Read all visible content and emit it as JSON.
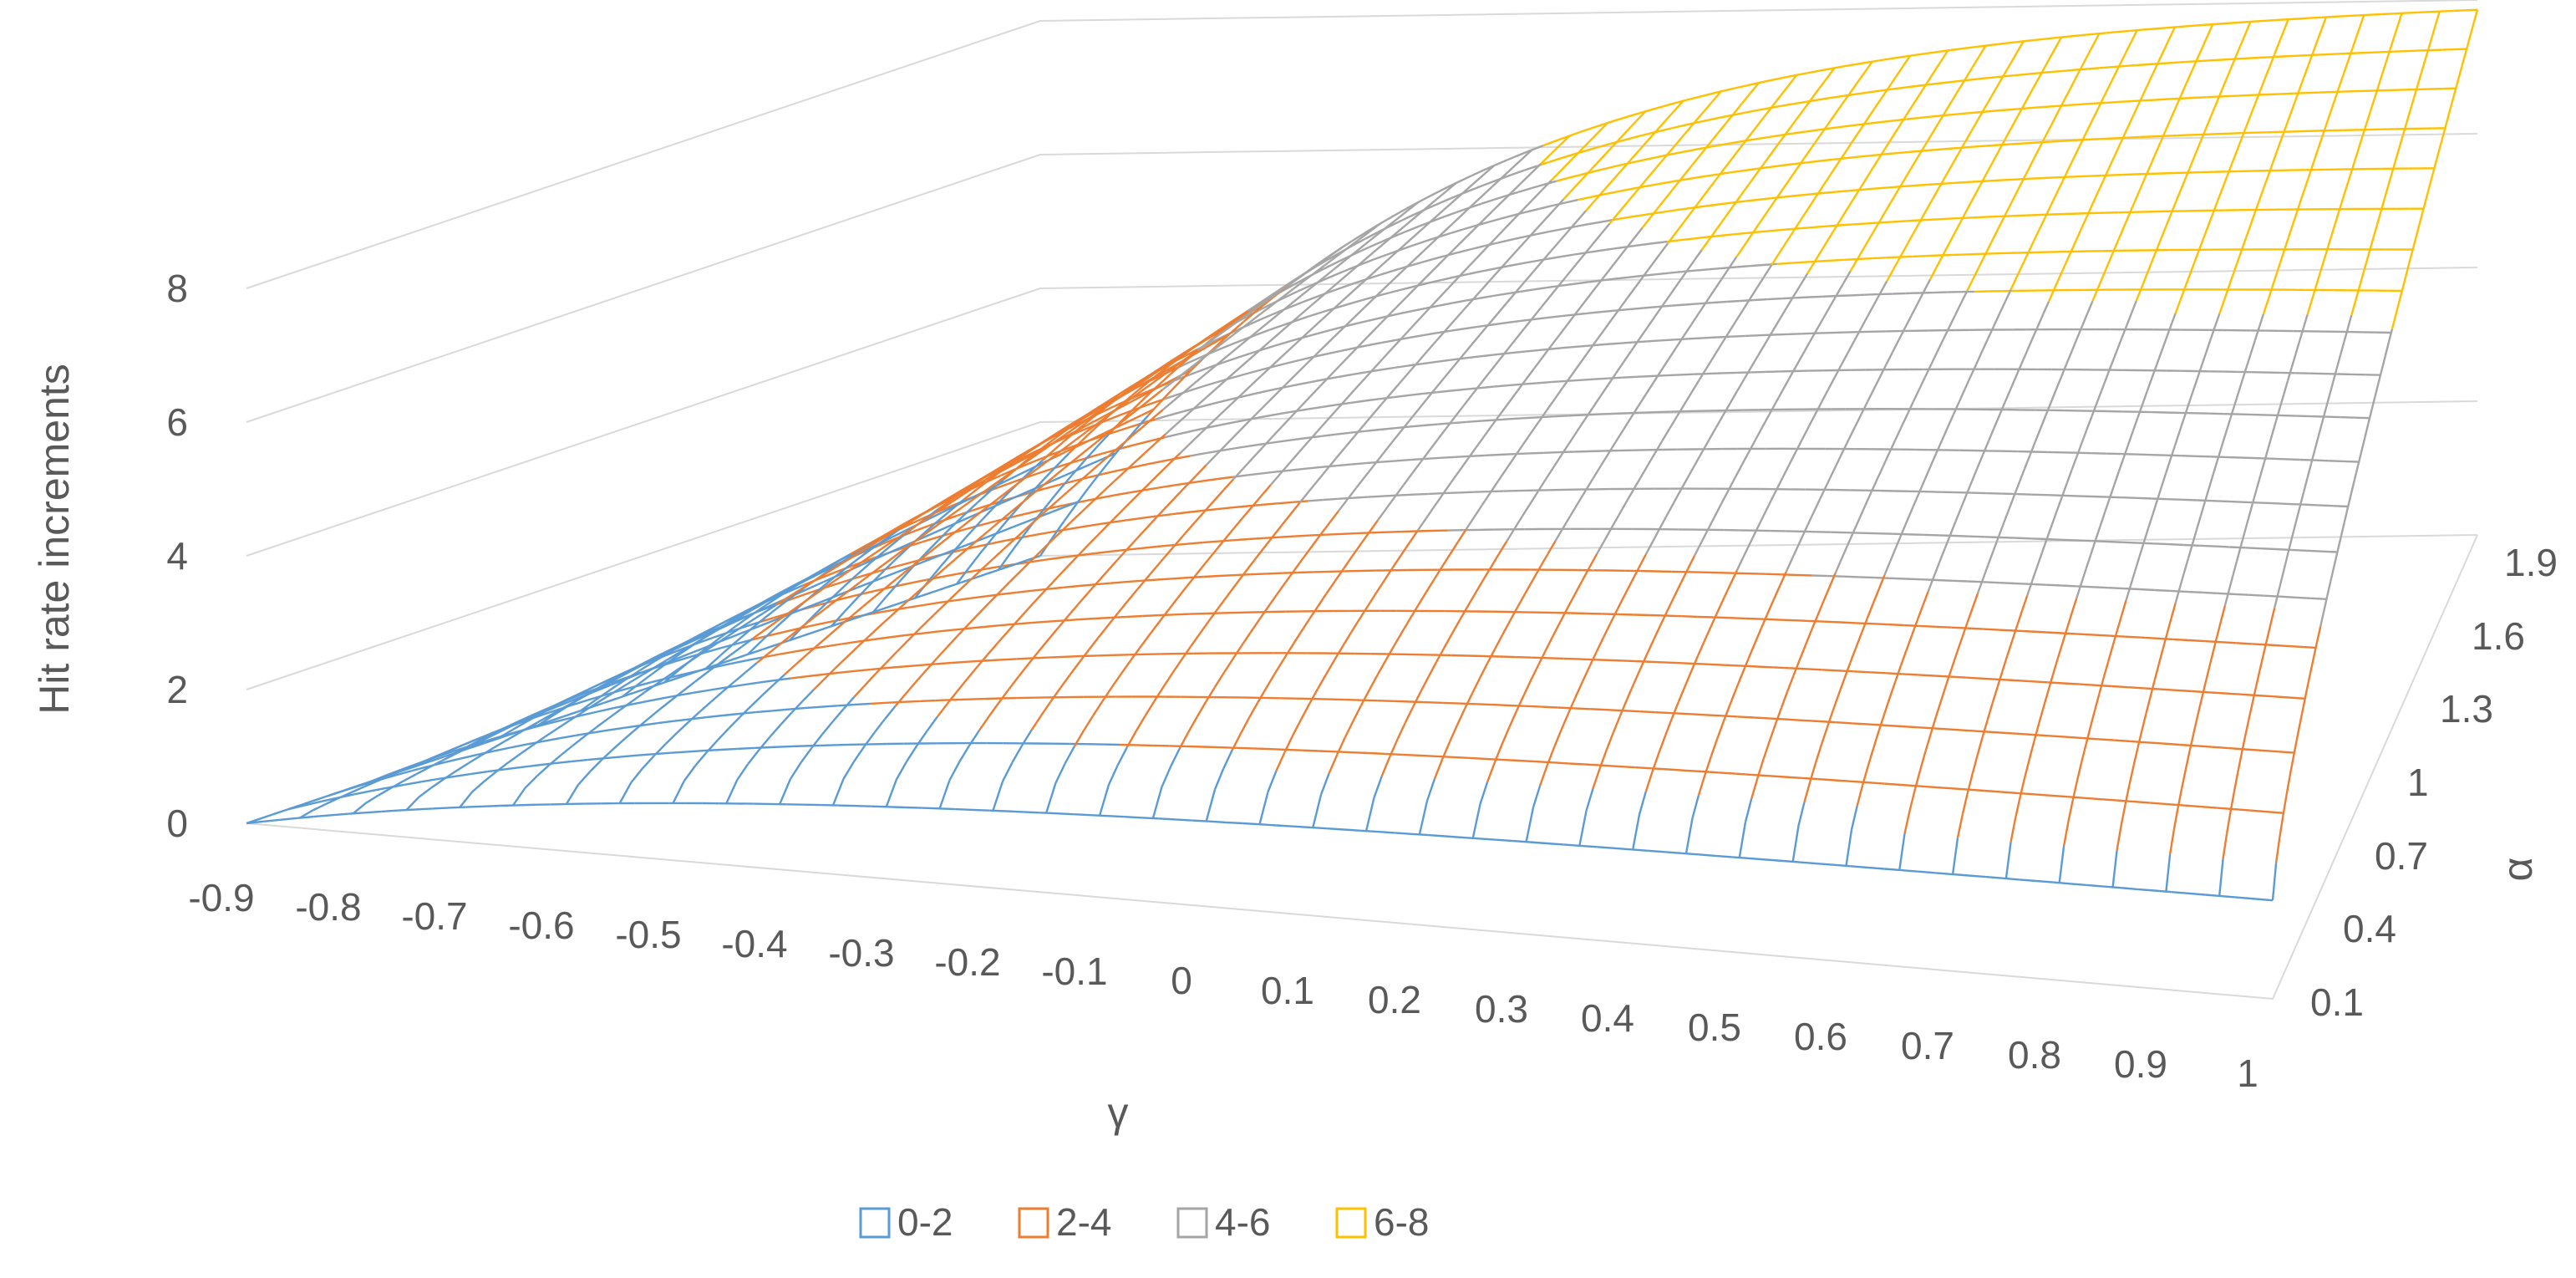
{
  "chart_data": {
    "type": "surface",
    "zlabel": "Hit rate increments",
    "xlabel": "γ",
    "ylabel": "α",
    "z_ticks": [
      "0",
      "2",
      "4",
      "6",
      "8"
    ],
    "x_ticks": [
      "-0.9",
      "-0.8",
      "-0.7",
      "-0.6",
      "-0.5",
      "-0.4",
      "-0.3",
      "-0.2",
      "-0.1",
      "0",
      "0.1",
      "0.2",
      "0.3",
      "0.4",
      "0.5",
      "0.6",
      "0.7",
      "0.8",
      "0.9",
      "1"
    ],
    "y_ticks": [
      "0.1",
      "0.4",
      "0.7",
      "1",
      "1.3",
      "1.6",
      "1.9"
    ],
    "x_range": [
      -0.9,
      1.0
    ],
    "y_range": [
      0.1,
      2.0
    ],
    "z_range": [
      0,
      8
    ],
    "grid": true,
    "legend_position": "bottom",
    "legend": [
      {
        "label": "0-2",
        "color": "#5B9BD5"
      },
      {
        "label": "2-4",
        "color": "#ED7D31"
      },
      {
        "label": "4-6",
        "color": "#A5A5A5"
      },
      {
        "label": "6-8",
        "color": "#FFC000"
      }
    ],
    "surface_note_values": {
      "z_at_gamma_max_alpha_max": 8.0,
      "z_at_gamma_max_alpha_min": 1.5,
      "z_at_gamma_min": 0
    }
  }
}
